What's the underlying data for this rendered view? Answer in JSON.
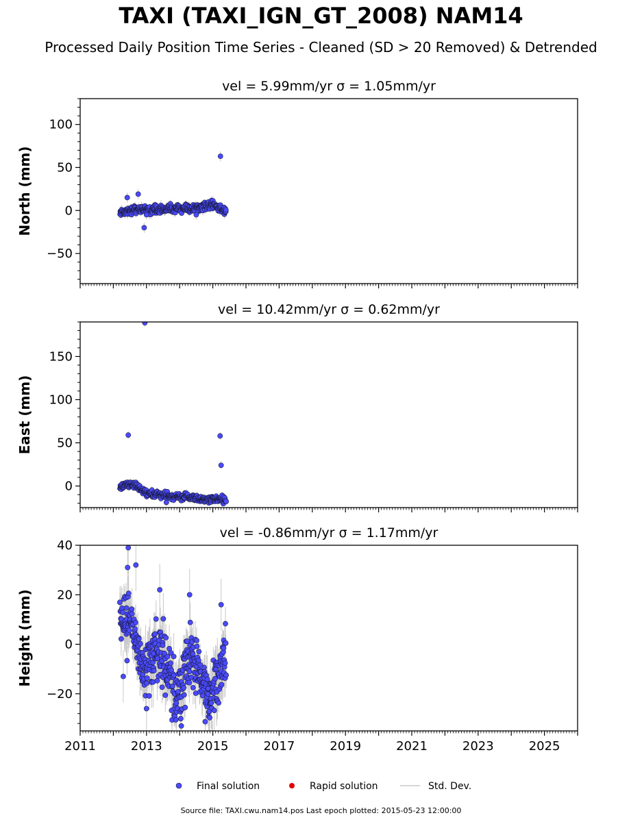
{
  "title": "TAXI (TAXI_IGN_GT_2008) NAM14",
  "subtitle": "Processed Daily Position Time Series - Cleaned (SD > 20 Removed) & Detrended",
  "footer": "Source file: TAXI.cwu.nam14.pos  Last epoch plotted: 2015-05-23 12:00:00",
  "legend": {
    "final": "Final solution",
    "rapid": "Rapid solution",
    "stddev": "Std. Dev."
  },
  "colors": {
    "final": "#4a4aff",
    "final_edge": "#1a1a3a",
    "rapid": "#e00000",
    "stddev": "#c8c8c8"
  },
  "chart_data": [
    {
      "type": "scatter",
      "title": "vel = 5.99mm/yr   σ = 1.05mm/yr",
      "ylabel": "North (mm)",
      "xlim": [
        2011.0,
        2026.0
      ],
      "ylim": [
        -85,
        130
      ],
      "yticks": [
        -50,
        0,
        50,
        100
      ],
      "x_range": [
        2012.2,
        2015.4
      ],
      "center_points": [
        [
          2012.2,
          -2
        ],
        [
          2012.4,
          -1
        ],
        [
          2012.6,
          1
        ],
        [
          2012.8,
          2
        ],
        [
          2013.0,
          0
        ],
        [
          2013.2,
          1
        ],
        [
          2013.4,
          1
        ],
        [
          2013.6,
          2
        ],
        [
          2013.8,
          2
        ],
        [
          2014.0,
          2
        ],
        [
          2014.2,
          3
        ],
        [
          2014.4,
          2
        ],
        [
          2014.6,
          4
        ],
        [
          2014.8,
          5
        ],
        [
          2015.0,
          6
        ],
        [
          2015.2,
          3
        ],
        [
          2015.4,
          -2
        ]
      ],
      "noise": 2.2,
      "err": 4,
      "outliers": [
        [
          2012.42,
          15
        ],
        [
          2012.75,
          19
        ],
        [
          2012.93,
          -20
        ],
        [
          2013.0,
          -5
        ],
        [
          2014.5,
          -5
        ],
        [
          2015.23,
          63
        ]
      ],
      "n": 360
    },
    {
      "type": "scatter",
      "title": "vel = 10.42mm/yr   σ = 0.62mm/yr",
      "ylabel": "East (mm)",
      "xlim": [
        2011.0,
        2026.0
      ],
      "ylim": [
        -25,
        190
      ],
      "yticks": [
        0,
        50,
        100,
        150
      ],
      "x_range": [
        2012.2,
        2015.4
      ],
      "center_points": [
        [
          2012.2,
          -1
        ],
        [
          2012.4,
          1
        ],
        [
          2012.6,
          2
        ],
        [
          2012.8,
          -3
        ],
        [
          2013.0,
          -8
        ],
        [
          2013.2,
          -10
        ],
        [
          2013.4,
          -10
        ],
        [
          2013.6,
          -12
        ],
        [
          2013.8,
          -13
        ],
        [
          2014.0,
          -13
        ],
        [
          2014.2,
          -12
        ],
        [
          2014.4,
          -13
        ],
        [
          2014.6,
          -15
        ],
        [
          2014.8,
          -15
        ],
        [
          2015.0,
          -16
        ],
        [
          2015.2,
          -15
        ],
        [
          2015.4,
          -15
        ]
      ],
      "noise": 2.0,
      "err": 3,
      "outliers": [
        [
          2012.45,
          59
        ],
        [
          2012.95,
          189
        ],
        [
          2013.6,
          -19
        ],
        [
          2015.22,
          58
        ],
        [
          2015.25,
          24
        ]
      ],
      "n": 360
    },
    {
      "type": "scatter",
      "title": "vel = -0.86mm/yr   σ = 1.17mm/yr",
      "ylabel": "Height (mm)",
      "xlim": [
        2011.0,
        2026.0
      ],
      "ylim": [
        -35,
        40
      ],
      "yticks": [
        -20,
        0,
        20,
        40
      ],
      "x_range": [
        2012.2,
        2015.4
      ],
      "center_points": [
        [
          2012.2,
          10
        ],
        [
          2012.35,
          12
        ],
        [
          2012.5,
          7
        ],
        [
          2012.7,
          0
        ],
        [
          2012.9,
          -8
        ],
        [
          2013.1,
          -6
        ],
        [
          2013.3,
          -4
        ],
        [
          2013.5,
          -3
        ],
        [
          2013.7,
          -12
        ],
        [
          2013.9,
          -22
        ],
        [
          2014.1,
          -15
        ],
        [
          2014.3,
          -5
        ],
        [
          2014.5,
          -10
        ],
        [
          2014.7,
          -18
        ],
        [
          2014.9,
          -20
        ],
        [
          2015.1,
          -14
        ],
        [
          2015.4,
          -5
        ]
      ],
      "noise": 6.0,
      "err": 7,
      "outliers": [
        [
          2012.45,
          39
        ],
        [
          2012.43,
          31
        ],
        [
          2012.68,
          32
        ],
        [
          2013.4,
          22
        ],
        [
          2014.3,
          20
        ],
        [
          2012.3,
          -13
        ],
        [
          2013.0,
          -26
        ],
        [
          2014.05,
          -33
        ],
        [
          2015.25,
          16
        ]
      ],
      "n": 420
    }
  ],
  "xticks": [
    2011,
    2013,
    2015,
    2017,
    2019,
    2021,
    2023,
    2025
  ]
}
